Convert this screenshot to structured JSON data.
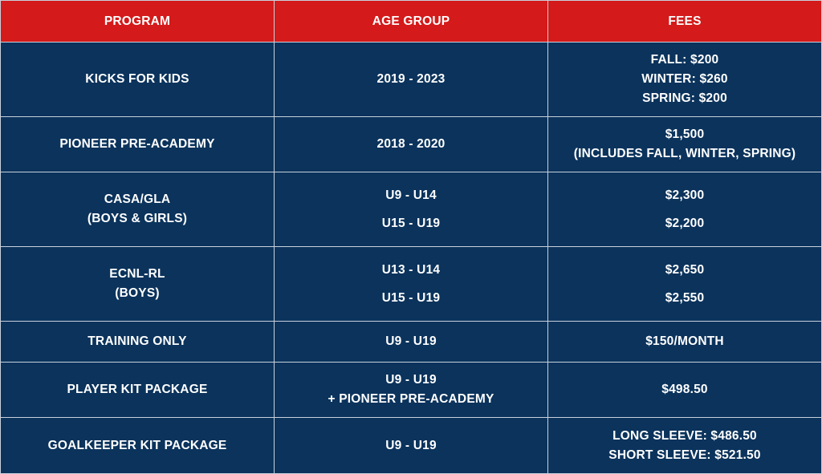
{
  "headers": {
    "program": "PROGRAM",
    "age_group": "AGE GROUP",
    "fees": "FEES"
  },
  "colors": {
    "header_bg": "#d41a1a",
    "body_bg": "#0b335c",
    "text": "#ffffff"
  },
  "rows": [
    {
      "program": [
        "KICKS FOR KIDS"
      ],
      "age": [
        "2019 - 2023"
      ],
      "fees": [
        "FALL: $200",
        "WINTER: $260",
        "SPRING: $200"
      ]
    },
    {
      "program": [
        "PIONEER PRE-ACADEMY"
      ],
      "age": [
        "2018 - 2020"
      ],
      "fees": [
        "$1,500",
        "(INCLUDES FALL, WINTER, SPRING)"
      ]
    },
    {
      "program": [
        "CASA/GLA",
        "(BOYS & GIRLS)"
      ],
      "age": [
        "U9 - U14",
        "U15 - U19"
      ],
      "fees": [
        "$2,300",
        "$2,200"
      ]
    },
    {
      "program": [
        "ECNL-RL",
        "(BOYS)"
      ],
      "age": [
        "U13 - U14",
        "U15 - U19"
      ],
      "fees": [
        "$2,650",
        "$2,550"
      ]
    },
    {
      "program": [
        "TRAINING ONLY"
      ],
      "age": [
        "U9 - U19"
      ],
      "fees": [
        "$150/MONTH"
      ]
    },
    {
      "program": [
        "PLAYER KIT PACKAGE"
      ],
      "age": [
        "U9 - U19",
        "+ PIONEER PRE-ACADEMY"
      ],
      "fees": [
        "$498.50"
      ]
    },
    {
      "program": [
        "GOALKEEPER KIT PACKAGE"
      ],
      "age": [
        "U9 - U19"
      ],
      "fees": [
        "LONG SLEEVE: $486.50",
        "SHORT SLEEVE: $521.50"
      ]
    }
  ]
}
